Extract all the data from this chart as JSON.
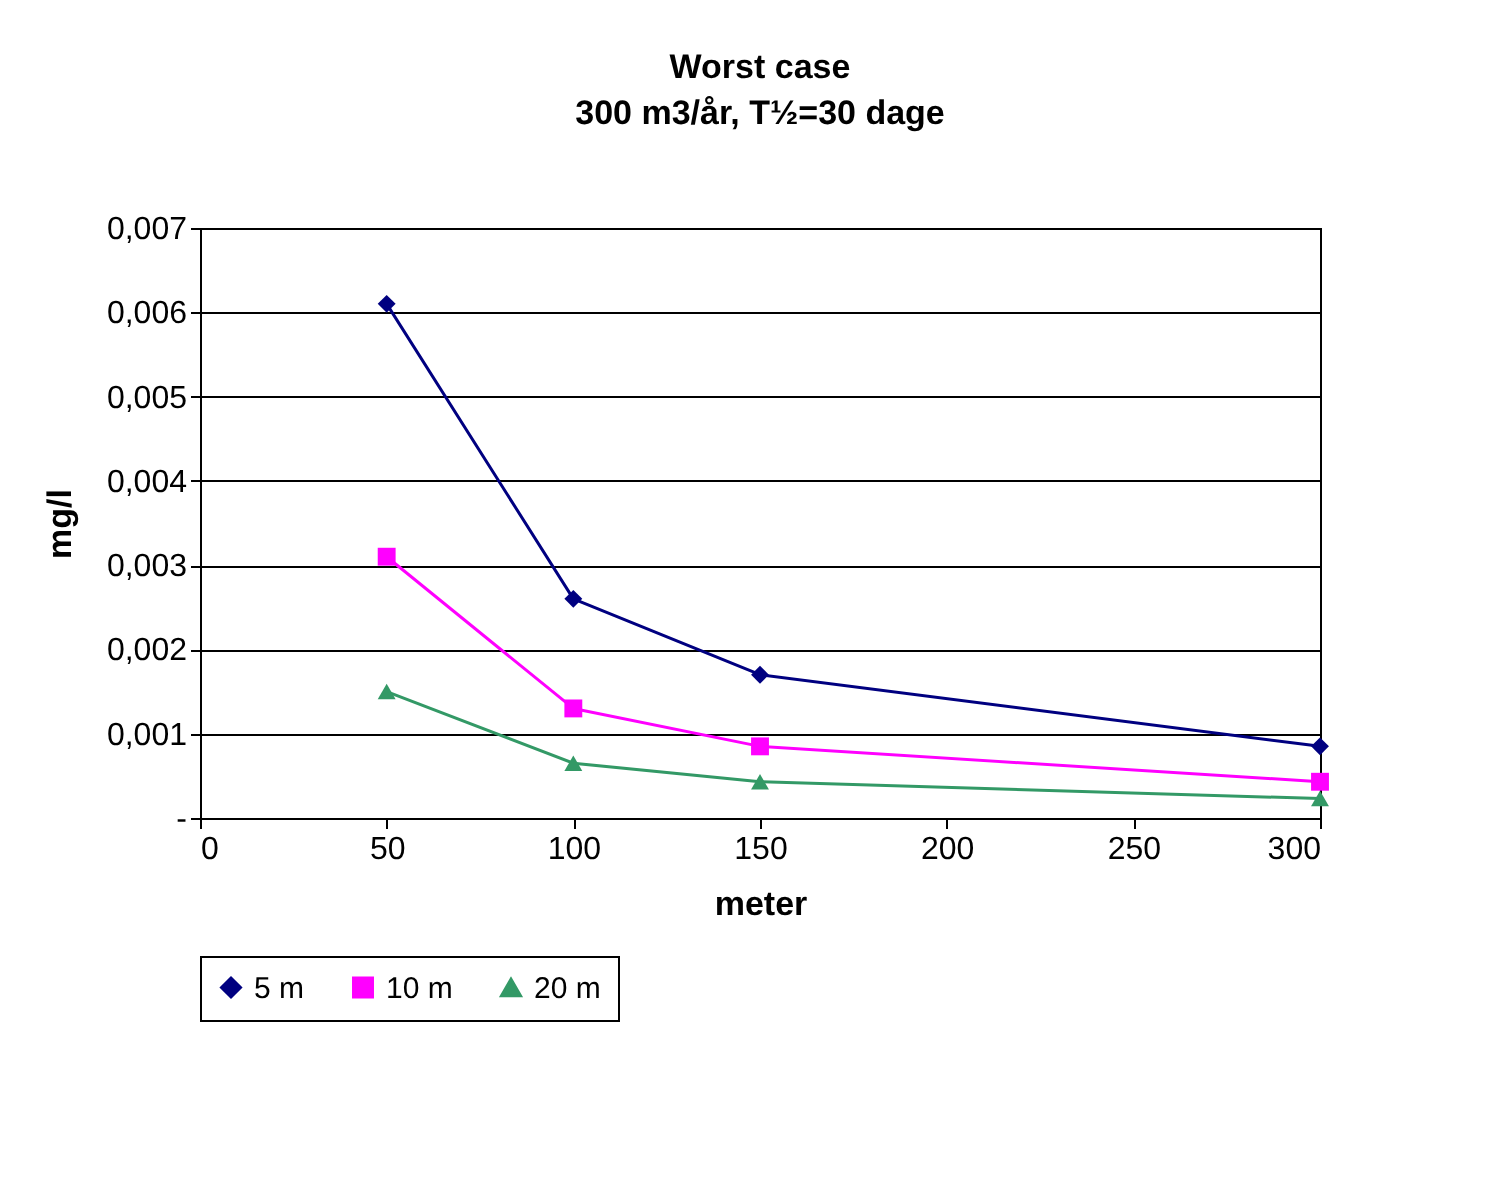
{
  "chart_data": {
    "type": "line",
    "title": "Worst case",
    "subtitle": "300 m3/år, T½=30 dage",
    "xlabel": "meter",
    "ylabel": "mg/l",
    "x": [
      50,
      100,
      150,
      300
    ],
    "series": [
      {
        "name": "5 m",
        "color": "#000080",
        "marker": "diamond",
        "values": [
          0.0061,
          0.0026,
          0.0017,
          0.00085
        ]
      },
      {
        "name": "10 m",
        "color": "#ff00ff",
        "marker": "square",
        "values": [
          0.0031,
          0.0013,
          0.00085,
          0.00043
        ]
      },
      {
        "name": "20 m",
        "color": "#339966",
        "marker": "triangle",
        "values": [
          0.0015,
          0.00065,
          0.00043,
          0.00023
        ]
      }
    ],
    "xlim": [
      0,
      300
    ],
    "xticks": [
      0,
      50,
      100,
      150,
      200,
      250,
      300
    ],
    "ylim": [
      0,
      0.007
    ],
    "yticks": [
      {
        "value": 0,
        "label": "-"
      },
      {
        "value": 0.001,
        "label": "0,001"
      },
      {
        "value": 0.002,
        "label": "0,002"
      },
      {
        "value": 0.003,
        "label": "0,003"
      },
      {
        "value": 0.004,
        "label": "0,004"
      },
      {
        "value": 0.005,
        "label": "0,005"
      },
      {
        "value": 0.006,
        "label": "0,006"
      },
      {
        "value": 0.007,
        "label": "0,007"
      }
    ],
    "grid": "y",
    "legend": "bottom",
    "line_style": "solid"
  }
}
